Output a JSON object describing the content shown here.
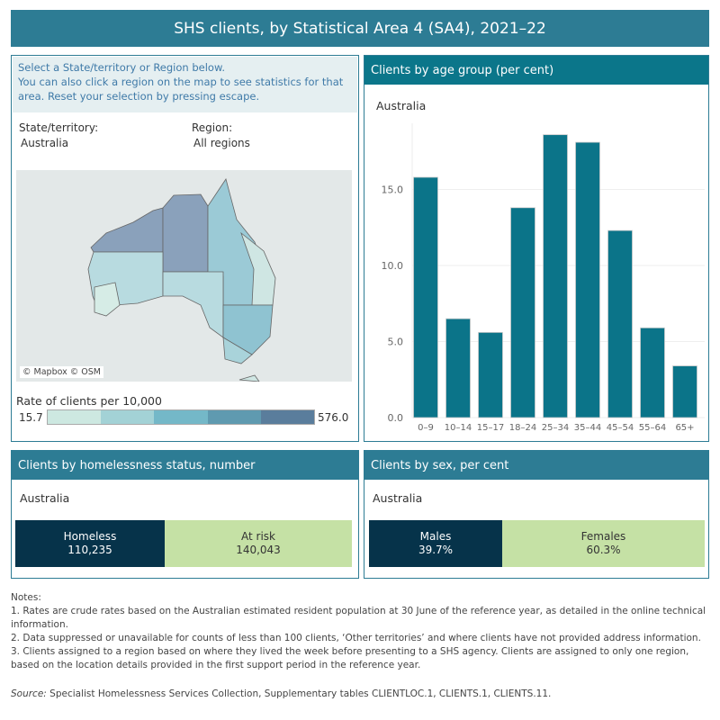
{
  "title": "SHS clients, by Statistical Area 4 (SA4), 2021–22",
  "left_panel": {
    "instructions": [
      "Select a State/territory or Region below.",
      "You can also click a region on the map to see statistics for that area. Reset your selection by pressing escape."
    ],
    "state_label": "State/territory:",
    "state_value": "Australia",
    "region_label": "Region:",
    "region_value": "All regions",
    "map_attribution": "© Mapbox © OSM",
    "legend_title": "Rate of clients per 10,000",
    "legend_min": "15.7",
    "legend_max": "576.0",
    "legend_colors": [
      "#cde8e1",
      "#a3d2d6",
      "#74b8c8",
      "#5f9ab0",
      "#5a7d9c"
    ]
  },
  "age_panel": {
    "header": "Clients by age group (per cent)",
    "subtitle": "Australia"
  },
  "chart_data": {
    "type": "bar",
    "title": "Clients by age group (per cent)",
    "xlabel": "",
    "ylabel": "",
    "categories": [
      "0–9",
      "10–14",
      "15–17",
      "18–24",
      "25–34",
      "35–44",
      "45–54",
      "55–64",
      "65+"
    ],
    "values": [
      15.8,
      6.5,
      5.6,
      13.8,
      18.6,
      18.1,
      12.3,
      5.9,
      3.4
    ],
    "yticks": [
      "0.0",
      "5.0",
      "10.0",
      "15.0"
    ],
    "ylim": [
      0,
      20
    ],
    "grid": true,
    "color": "#0b7489"
  },
  "homeless_panel": {
    "header": "Clients by homelessness status, number",
    "subtitle": "Australia",
    "segments": [
      {
        "label": "Homeless",
        "value": "110,235",
        "color": "#06334a"
      },
      {
        "label": "At risk",
        "value": "140,043",
        "color": "#c5e1a5"
      }
    ]
  },
  "sex_panel": {
    "header": "Clients by sex, per cent",
    "subtitle": "Australia",
    "segments": [
      {
        "label": "Males",
        "value": "39.7%",
        "color": "#06334a"
      },
      {
        "label": "Females",
        "value": "60.3%",
        "color": "#c5e1a5"
      }
    ]
  },
  "notes": [
    "Notes:",
    "1. Rates are crude rates based on the Australian estimated resident population at 30 June of the reference year, as detailed in the online technical information.",
    "2. Data suppressed or unavailable for counts of less than 100 clients, ‘Other territories’ and where clients have not provided address information.",
    "3. Clients assigned to a region based on where they lived the week before presenting to a SHS agency. Clients are assigned to only one region, based on the location details provided in the first support period in the reference year."
  ],
  "source_label": "Source:",
  "source_text": " Specialist Homelessness Services Collection, Supplementary tables  CLIENTLOC.1, CLIENTS.1, CLIENTS.11."
}
